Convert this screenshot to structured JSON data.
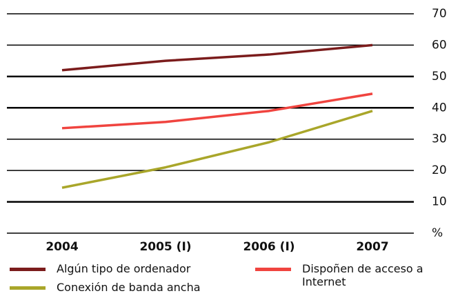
{
  "chart_data": {
    "type": "line",
    "categories": [
      "2004",
      "2005 (I)",
      "2006 (I)",
      "2007"
    ],
    "series": [
      {
        "name": "Algún tipo de ordenador",
        "color": "#7b1c1c",
        "values": [
          52,
          55,
          57,
          60
        ]
      },
      {
        "name": "Dispoñen de acceso a Internet",
        "color": "#f0443f",
        "values": [
          33.5,
          35.5,
          39,
          44.5
        ]
      },
      {
        "name": "Conexión de banda ancha",
        "color": "#a9a62a",
        "values": [
          14.5,
          21,
          29,
          39
        ]
      }
    ],
    "ylim": [
      0,
      70
    ],
    "yticks": [
      {
        "value": 0,
        "label": "%"
      },
      10,
      20,
      30,
      40,
      50,
      60,
      70
    ],
    "grid": true
  }
}
